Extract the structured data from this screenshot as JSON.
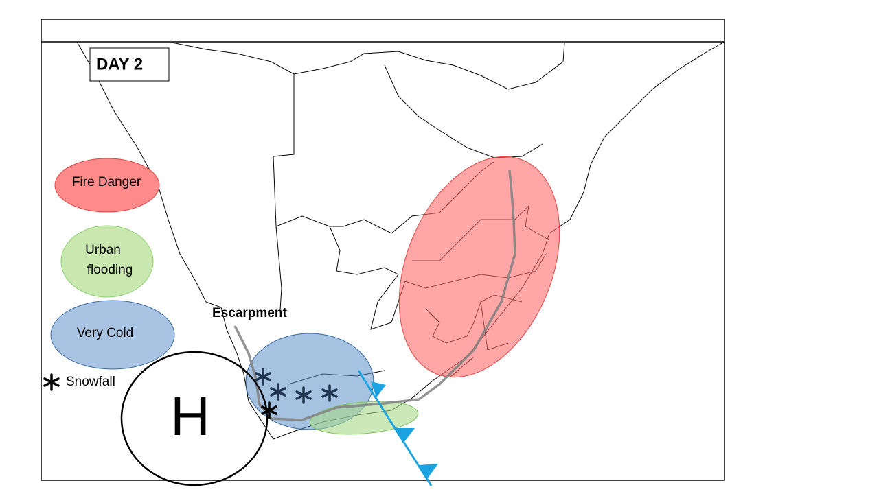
{
  "header": {
    "title": "DAY 2"
  },
  "legend": {
    "fire": "Fire Danger",
    "urban": [
      "Urban",
      "flooding"
    ],
    "cold": "Very Cold",
    "snow": "Snowfall"
  },
  "map_labels": {
    "escarpment": "Escarpment",
    "high": "H"
  }
}
